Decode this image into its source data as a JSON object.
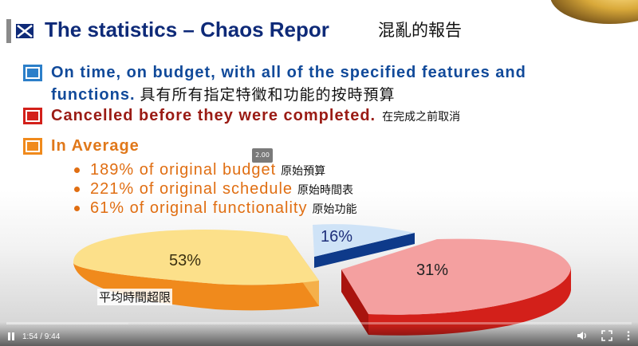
{
  "slide": {
    "title": "The statistics – Chaos Repor",
    "title_subtitle_cn": "混亂的報告",
    "legend": [
      {
        "line1": "On time, on budget, with all of the specified features and",
        "line2": "functions.",
        "cn": "具有所有指定特徵和功能的按時預算",
        "color": "#2c7fc9"
      },
      {
        "text": "Cancelled before they were completed.",
        "cn": "在完成之前取消",
        "color": "#d3201a"
      },
      {
        "text": "In Average",
        "color": "#f08a1c"
      }
    ],
    "bullets": [
      {
        "text": "189% of original budget",
        "cn": "原始預算"
      },
      {
        "text": "221% of original schedule",
        "cn": "原始時間表"
      },
      {
        "text": "61% of original functionality",
        "cn": "原始功能"
      }
    ],
    "average_cn": "平均時間超限"
  },
  "chart_data": {
    "type": "pie",
    "categories": [
      "On time, on budget",
      "Cancelled",
      "In Average"
    ],
    "values": [
      16,
      31,
      53
    ],
    "labels": [
      "16%",
      "31%",
      "53%"
    ],
    "colors": [
      "#cfe3f7",
      "#f4a0a0",
      "#fce08a"
    ]
  },
  "player": {
    "speed_tooltip": "2.00",
    "time": "1:54 / 9:44",
    "progress": 0.195
  },
  "icons": {
    "title": "blue-x-flag-icon",
    "play": "pause-icon",
    "volume": "volume-icon",
    "fullscreen": "fullscreen-icon",
    "more": "more-vertical-icon"
  }
}
